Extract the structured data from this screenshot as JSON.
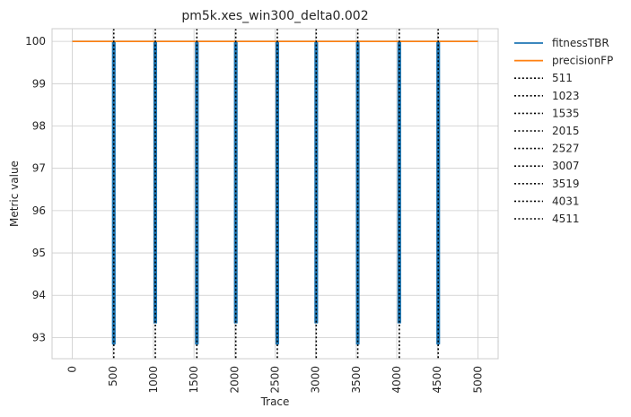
{
  "chart_data": {
    "type": "line",
    "title": "pm5k.xes_win300_delta0.002",
    "xlabel": "Trace",
    "ylabel": "Metric value",
    "xlim": [
      -250,
      5250
    ],
    "ylim": [
      92.5,
      100.3
    ],
    "xticks": [
      0,
      500,
      1000,
      1500,
      2000,
      2500,
      3000,
      3500,
      4000,
      4500,
      5000
    ],
    "yticks": [
      93,
      94,
      95,
      96,
      97,
      98,
      99,
      100
    ],
    "grid": true,
    "legend_placement": "outside-upper-right",
    "series": [
      {
        "name": "fitnessTBR",
        "color": "#1f77b4",
        "style": "solid",
        "baseline": 100,
        "dips": [
          {
            "x": 511,
            "min": 92.85
          },
          {
            "x": 1023,
            "min": 93.35
          },
          {
            "x": 1535,
            "min": 92.85
          },
          {
            "x": 2015,
            "min": 93.35
          },
          {
            "x": 2527,
            "min": 92.85
          },
          {
            "x": 3007,
            "min": 93.35
          },
          {
            "x": 3519,
            "min": 92.85
          },
          {
            "x": 4031,
            "min": 93.35
          },
          {
            "x": 4511,
            "min": 92.85
          }
        ],
        "x_range": [
          0,
          5000
        ]
      },
      {
        "name": "precisionFP",
        "color": "#ff7f0e",
        "style": "solid",
        "values_constant": 100,
        "x_range": [
          0,
          5000
        ]
      }
    ],
    "drift_lines": {
      "color": "#000000",
      "style": "dotted",
      "x": [
        511,
        1023,
        1535,
        2015,
        2527,
        3007,
        3519,
        4031,
        4511
      ],
      "labels": [
        "511",
        "1023",
        "1535",
        "2015",
        "2527",
        "3007",
        "3519",
        "4031",
        "4511"
      ]
    }
  }
}
